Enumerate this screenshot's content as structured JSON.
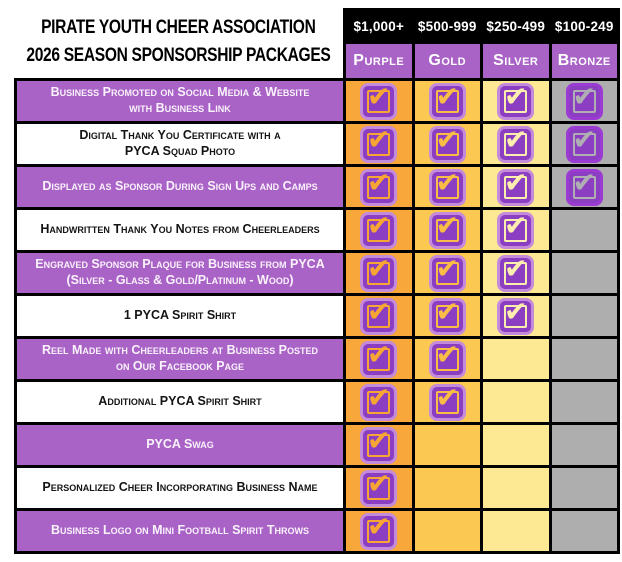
{
  "title": {
    "line1": "PIRATE YOUTH CHEER ASSOCIATION",
    "line2": "2026 SEASON SPONSORSHIP PACKAGES"
  },
  "tiers": [
    {
      "price": "$1,000+",
      "name": "Purple",
      "column_bg": "#F8A73B",
      "check_color": "#F7A634",
      "halo_color": "#C48BDA"
    },
    {
      "price": "$500-999",
      "name": "Gold",
      "column_bg": "#FBC851",
      "check_color": "#F9BC45",
      "halo_color": "#C48BDA"
    },
    {
      "price": "$250-499",
      "name": "Silver",
      "column_bg": "#FDE993",
      "check_color": "#FBEEAE",
      "halo_color": "#C48BDA"
    },
    {
      "price": "$100-249",
      "name": "Bronze",
      "column_bg": "#AEAEAE",
      "check_color": "#AFAEB2",
      "halo_color": "#9B3BD4"
    }
  ],
  "benefits": [
    {
      "label": "Business Promoted on Social Media & Website\nwith Business Link",
      "row_style": "purple",
      "checks": [
        true,
        true,
        true,
        true
      ]
    },
    {
      "label": "Digital Thank You Certificate with a\nPYCA Squad Photo",
      "row_style": "white",
      "checks": [
        true,
        true,
        true,
        true
      ]
    },
    {
      "label": "Displayed as Sponsor During Sign Ups and Camps",
      "row_style": "purple",
      "checks": [
        true,
        true,
        true,
        true
      ]
    },
    {
      "label": "Handwritten Thank You Notes from Cheerleaders",
      "row_style": "white",
      "checks": [
        true,
        true,
        true,
        false
      ]
    },
    {
      "label": "Engraved Sponsor Plaque for Business from PYCA\n(Silver - Glass & Gold/Platinum - Wood)",
      "row_style": "purple",
      "checks": [
        true,
        true,
        true,
        false
      ]
    },
    {
      "label": "1 PYCA Spirit Shirt",
      "row_style": "white",
      "checks": [
        true,
        true,
        true,
        false
      ]
    },
    {
      "label": "Reel Made with Cheerleaders at Business Posted\non Our Facebook Page",
      "row_style": "purple",
      "checks": [
        true,
        true,
        false,
        false
      ]
    },
    {
      "label": "Additional PYCA Spirit Shirt",
      "row_style": "white",
      "checks": [
        true,
        true,
        false,
        false
      ]
    },
    {
      "label": "PYCA Swag",
      "row_style": "purple",
      "checks": [
        true,
        false,
        false,
        false
      ]
    },
    {
      "label": "Personalized Cheer Incorporating Business Name",
      "row_style": "white",
      "checks": [
        true,
        false,
        false,
        false
      ]
    },
    {
      "label": "Business Logo on Mini Football Spirit Throws",
      "row_style": "purple",
      "checks": [
        true,
        false,
        false,
        false
      ]
    }
  ],
  "colors": {
    "table_border": "#000000",
    "price_bar_bg": "#000000",
    "price_bar_text": "#FFFFFF",
    "tier_row_bg": "#A963C6",
    "benefit_purple_row_bg": "#A963C6",
    "benefit_purple_row_text": "#FAF2FB",
    "benefit_white_row_bg": "#FFFFFF",
    "benefit_white_row_text": "#141414",
    "checkbox_fill": "#8C3EC3",
    "title_text": "#000000"
  },
  "icons": {
    "check": "✔"
  }
}
